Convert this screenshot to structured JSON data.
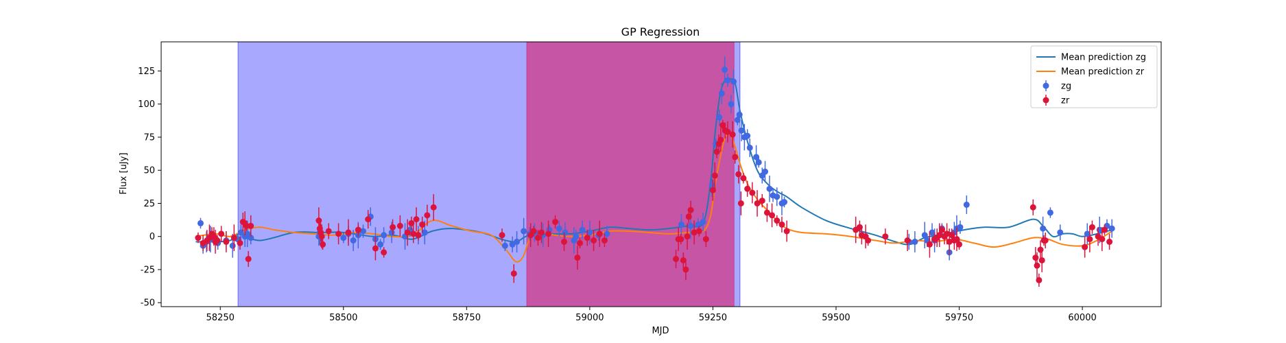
{
  "chart_data": {
    "type": "scatter",
    "title": "GP Regression",
    "xlabel": "MJD",
    "ylabel": "Flux [uJy]",
    "xlim": [
      58130,
      60160
    ],
    "ylim": [
      -53,
      147
    ],
    "xticks": [
      58250,
      58500,
      58750,
      59000,
      59250,
      59500,
      59750,
      60000
    ],
    "yticks": [
      -50,
      -25,
      0,
      25,
      50,
      75,
      100,
      125
    ],
    "grid": false,
    "legend_position": "top-right",
    "shaded_regions": [
      {
        "x0": 58286,
        "x1": 59305,
        "color": "#0000ff",
        "opacity": 0.34
      },
      {
        "x0": 58872,
        "x1": 59293,
        "color": "#e0105c",
        "opacity": 0.55
      }
    ],
    "lines": [
      {
        "name": "Mean prediction zg",
        "color": "#1f77b4",
        "x": [
          58200,
          58240,
          58270,
          58290,
          58330,
          58400,
          58450,
          58500,
          58560,
          58600,
          58640,
          58680,
          58720,
          58780,
          58820,
          58850,
          58870,
          58890,
          58920,
          58960,
          59000,
          59040,
          59080,
          59120,
          59160,
          59200,
          59230,
          59245,
          59255,
          59265,
          59275,
          59285,
          59295,
          59305,
          59320,
          59340,
          59360,
          59380,
          59400,
          59430,
          59480,
          59530,
          59580,
          59620,
          59650,
          59680,
          59720,
          59760,
          59800,
          59850,
          59900,
          59920,
          59940,
          59960,
          59980,
          60000,
          60030,
          60060
        ],
        "y": [
          -4,
          -4,
          -3,
          2,
          -3,
          3,
          3,
          3,
          0,
          1,
          -2,
          4,
          6,
          3,
          -2,
          -4,
          0,
          2,
          2,
          2,
          4,
          7,
          6,
          5,
          6,
          8,
          10,
          40,
          80,
          108,
          118,
          119,
          116,
          95,
          72,
          50,
          40,
          34,
          30,
          22,
          12,
          6,
          1,
          -4,
          -6,
          -1,
          2,
          5,
          7,
          7,
          13,
          8,
          0,
          2,
          2,
          0,
          2,
          5
        ]
      },
      {
        "name": "Mean prediction zr",
        "color": "#ff7f0e",
        "x": [
          58200,
          58240,
          58270,
          58300,
          58330,
          58360,
          58400,
          58440,
          58480,
          58520,
          58560,
          58600,
          58640,
          58680,
          58720,
          58760,
          58800,
          58830,
          58850,
          58865,
          58880,
          58900,
          58930,
          58960,
          59000,
          59040,
          59080,
          59120,
          59160,
          59200,
          59230,
          59245,
          59255,
          59265,
          59275,
          59285,
          59295,
          59305,
          59320,
          59340,
          59360,
          59380,
          59400,
          59430,
          59480,
          59530,
          59580,
          59620,
          59660,
          59700,
          59740,
          59780,
          59820,
          59860,
          59900,
          59930,
          59960,
          60000,
          60030,
          60060
        ],
        "y": [
          0,
          2,
          0,
          5,
          7,
          5,
          3,
          2,
          1,
          3,
          2,
          0,
          1,
          12,
          8,
          4,
          1,
          -10,
          -19,
          -15,
          0,
          3,
          1,
          0,
          1,
          4,
          4,
          3,
          2,
          3,
          4,
          15,
          40,
          60,
          75,
          77,
          68,
          55,
          40,
          28,
          20,
          12,
          6,
          3,
          2,
          0,
          -3,
          -5,
          -3,
          -4,
          -2,
          -5,
          -8,
          -5,
          -1,
          -2,
          -6,
          -7,
          -3,
          4
        ]
      }
    ],
    "series": [
      {
        "name": "zg",
        "color": "#4169e1",
        "marker": "circle",
        "x": [
          58210,
          58215,
          58222,
          58230,
          58245,
          58262,
          58275,
          58285,
          58292,
          58300,
          58305,
          58312,
          58450,
          58452,
          58500,
          58510,
          58520,
          58530,
          58540,
          58555,
          58565,
          58575,
          58582,
          58598,
          58625,
          58635,
          58652,
          58665,
          58828,
          58843,
          58852,
          58866,
          58878,
          58888,
          58905,
          58918,
          58938,
          58950,
          58968,
          58972,
          58985,
          59000,
          59018,
          59035,
          59186,
          59205,
          59220,
          59230,
          59248,
          59256,
          59263,
          59268,
          59274,
          59280,
          59287,
          59292,
          59300,
          59304,
          59308,
          59314,
          59320,
          59325,
          59338,
          59343,
          59350,
          59356,
          59365,
          59372,
          59380,
          59390,
          59395,
          59648,
          59660,
          59680,
          59685,
          59695,
          59700,
          59715,
          59730,
          59740,
          59745,
          59752,
          59765,
          59920,
          59935,
          59955,
          60010,
          60035,
          60050,
          60060
        ],
        "y": [
          10,
          -7,
          -4,
          -2,
          -5,
          -3,
          -7,
          -2,
          3,
          0,
          2,
          -1,
          0,
          3,
          -1,
          2,
          -3,
          1,
          4,
          15,
          -2,
          -6,
          1,
          3,
          0,
          5,
          1,
          3,
          -7,
          -6,
          -4,
          4,
          2,
          3,
          1,
          5,
          6,
          3,
          -3,
          0,
          5,
          3,
          1,
          2,
          9,
          8,
          9,
          11,
          39,
          70,
          90,
          108,
          126,
          118,
          100,
          117,
          88,
          92,
          80,
          75,
          76,
          67,
          60,
          56,
          46,
          49,
          36,
          31,
          30,
          25,
          26,
          -4,
          -4,
          1,
          -3,
          3,
          -3,
          6,
          -12,
          3,
          6,
          7,
          24,
          6,
          18,
          3,
          2,
          5,
          8,
          6
        ]
      },
      {
        "name": "zr",
        "color": "#dc143c",
        "marker": "circle",
        "x": [
          58205,
          58215,
          58223,
          58228,
          58233,
          58237,
          58240,
          58244,
          58252,
          58262,
          58278,
          58290,
          58296,
          58300,
          58303,
          58307,
          58312,
          58450,
          58452,
          58454,
          58456,
          58458,
          58470,
          58490,
          58510,
          58530,
          58550,
          58565,
          58582,
          58600,
          58615,
          58630,
          58638,
          58642,
          58648,
          58652,
          58660,
          58670,
          58683,
          58822,
          58846,
          58880,
          58886,
          58895,
          58902,
          58916,
          58930,
          58948,
          58975,
          58980,
          58995,
          59008,
          59020,
          59030,
          59175,
          59180,
          59185,
          59190,
          59195,
          59198,
          59201,
          59205,
          59212,
          59222,
          59236,
          59250,
          59254,
          59258,
          59262,
          59266,
          59270,
          59275,
          59280,
          59290,
          59295,
          59302,
          59307,
          59312,
          59320,
          59330,
          59340,
          59350,
          59360,
          59370,
          59380,
          59390,
          59400,
          59540,
          59548,
          59552,
          59560,
          59565,
          59600,
          59645,
          59690,
          59700,
          59705,
          59710,
          59715,
          59720,
          59725,
          59730,
          59735,
          59740,
          59745,
          59750,
          59900,
          59905,
          59908,
          59912,
          59915,
          59918,
          59922,
          59925,
          60005,
          60015,
          60020,
          60032,
          60040,
          60045,
          60055
        ],
        "y": [
          -1,
          -5,
          -3,
          -1,
          2,
          0,
          -4,
          -3,
          2,
          -4,
          -1,
          -5,
          11,
          10,
          8,
          -17,
          8,
          12,
          6,
          3,
          0,
          -6,
          4,
          2,
          3,
          5,
          13,
          -9,
          -12,
          7,
          8,
          3,
          10,
          2,
          13,
          1,
          9,
          16,
          22,
          1,
          -28,
          1,
          4,
          -1,
          3,
          2,
          11,
          -4,
          -16,
          -5,
          -1,
          -3,
          2,
          -3,
          -17,
          -2,
          -2,
          -18,
          -25,
          0,
          15,
          20,
          3,
          4,
          -2,
          35,
          46,
          64,
          70,
          73,
          84,
          80,
          79,
          77,
          60,
          47,
          25,
          44,
          36,
          33,
          25,
          27,
          18,
          16,
          12,
          9,
          4,
          5,
          7,
          1,
          0,
          -3,
          0,
          -3,
          -6,
          -2,
          -1,
          1,
          5,
          0,
          2,
          -4,
          1,
          -3,
          -2,
          -6,
          22,
          -16,
          -22,
          -33,
          -10,
          -18,
          -3,
          -3,
          -8,
          -2,
          7,
          0,
          -2,
          5,
          -4
        ]
      }
    ],
    "legend": [
      {
        "label": "Mean prediction zg",
        "kind": "line",
        "color": "#1f77b4"
      },
      {
        "label": "Mean prediction zr",
        "kind": "line",
        "color": "#ff7f0e"
      },
      {
        "label": "zg",
        "kind": "errorbar",
        "color": "#4169e1"
      },
      {
        "label": "zr",
        "kind": "errorbar",
        "color": "#dc143c"
      }
    ]
  }
}
